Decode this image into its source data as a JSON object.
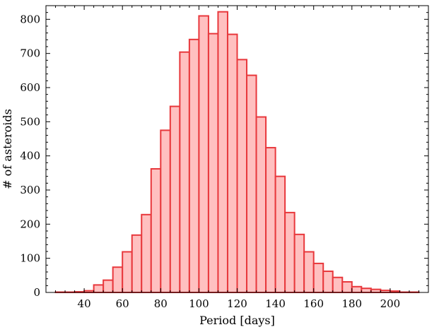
{
  "chart_data": {
    "type": "bar",
    "title": "",
    "xlabel": "Period [days]",
    "ylabel": "# of asteroids",
    "xlim": [
      20,
      220
    ],
    "ylim": [
      0,
      840
    ],
    "xticks": [
      40,
      60,
      80,
      100,
      120,
      140,
      160,
      180,
      200
    ],
    "yticks": [
      0,
      100,
      200,
      300,
      400,
      500,
      600,
      700,
      800
    ],
    "bin_width": 5,
    "bin_starts": [
      25,
      30,
      35,
      40,
      45,
      50,
      55,
      60,
      65,
      70,
      75,
      80,
      85,
      90,
      95,
      100,
      105,
      110,
      115,
      120,
      125,
      130,
      135,
      140,
      145,
      150,
      155,
      160,
      165,
      170,
      175,
      180,
      185,
      190,
      195,
      200,
      205,
      210
    ],
    "values": [
      1,
      1,
      2,
      5,
      22,
      36,
      74,
      119,
      168,
      228,
      362,
      475,
      545,
      704,
      741,
      810,
      758,
      822,
      756,
      682,
      636,
      514,
      424,
      340,
      234,
      170,
      119,
      85,
      62,
      44,
      31,
      17,
      12,
      9,
      6,
      4,
      1,
      1
    ],
    "colors": {
      "bar_fill": "#ffc0c0",
      "bar_edge": "#e8383c"
    },
    "grid": false,
    "legend": "none"
  }
}
